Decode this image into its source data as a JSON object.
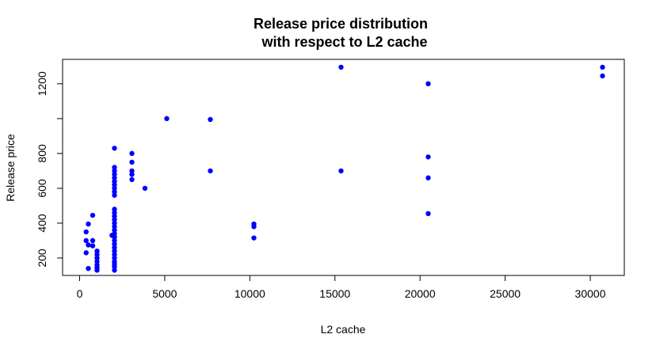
{
  "chart_data": {
    "type": "scatter",
    "title_line1": "Release price distribution",
    "title_line2": "with respect to L2 cache",
    "xlabel": "L2 cache",
    "ylabel": "Release price",
    "xlim": [
      -1000,
      32000
    ],
    "ylim": [
      100,
      1340
    ],
    "xticks": [
      0,
      5000,
      10000,
      15000,
      20000,
      25000,
      30000
    ],
    "yticks": [
      200,
      400,
      600,
      800,
      1000,
      1200
    ],
    "ytick_labels": [
      "200",
      "400",
      "600",
      "800",
      "",
      "1200"
    ],
    "point_color": "#0000ff",
    "grid": false,
    "points": [
      [
        384,
        350
      ],
      [
        384,
        300
      ],
      [
        384,
        230
      ],
      [
        512,
        140
      ],
      [
        512,
        275
      ],
      [
        512,
        395
      ],
      [
        768,
        270
      ],
      [
        768,
        300
      ],
      [
        768,
        445
      ],
      [
        1024,
        240
      ],
      [
        1024,
        220
      ],
      [
        1024,
        200
      ],
      [
        1024,
        180
      ],
      [
        1024,
        160
      ],
      [
        1024,
        145
      ],
      [
        1024,
        130
      ],
      [
        1900,
        330
      ],
      [
        2048,
        830
      ],
      [
        2048,
        720
      ],
      [
        2048,
        700
      ],
      [
        2048,
        680
      ],
      [
        2048,
        660
      ],
      [
        2048,
        640
      ],
      [
        2048,
        620
      ],
      [
        2048,
        600
      ],
      [
        2048,
        580
      ],
      [
        2048,
        560
      ],
      [
        2048,
        480
      ],
      [
        2048,
        460
      ],
      [
        2048,
        440
      ],
      [
        2048,
        420
      ],
      [
        2048,
        400
      ],
      [
        2048,
        380
      ],
      [
        2048,
        360
      ],
      [
        2048,
        340
      ],
      [
        2048,
        320
      ],
      [
        2048,
        300
      ],
      [
        2048,
        280
      ],
      [
        2048,
        260
      ],
      [
        2048,
        240
      ],
      [
        2048,
        220
      ],
      [
        2048,
        200
      ],
      [
        2048,
        180
      ],
      [
        2048,
        165
      ],
      [
        2048,
        150
      ],
      [
        2048,
        130
      ],
      [
        3072,
        800
      ],
      [
        3072,
        750
      ],
      [
        3072,
        700
      ],
      [
        3072,
        680
      ],
      [
        3072,
        650
      ],
      [
        3840,
        600
      ],
      [
        5120,
        1000
      ],
      [
        7680,
        995
      ],
      [
        7680,
        700
      ],
      [
        10240,
        395
      ],
      [
        10240,
        380
      ],
      [
        10240,
        315
      ],
      [
        15360,
        1295
      ],
      [
        15360,
        700
      ],
      [
        20480,
        1200
      ],
      [
        20480,
        780
      ],
      [
        20480,
        660
      ],
      [
        20480,
        455
      ],
      [
        30720,
        1295
      ],
      [
        30720,
        1245
      ]
    ]
  }
}
